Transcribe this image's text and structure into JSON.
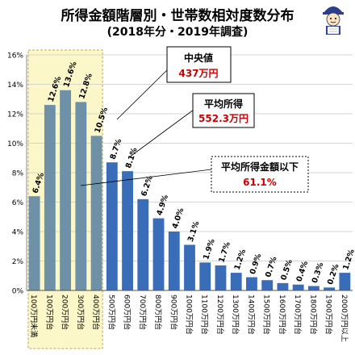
{
  "title_line1": "所得金額階層別・世帯数相対度数分布",
  "title_line2": "(2018年分・2019年調査)",
  "callouts": {
    "median": {
      "label": "中央値",
      "value": "437万円"
    },
    "mean": {
      "label": "平均所得",
      "value": "552.3万円"
    },
    "below_mean": {
      "label": "平均所得金額以下",
      "value": "61.1%"
    }
  },
  "colors": {
    "bar_below_mean": "#6f91a8",
    "bar_above_mean": "#3a6db8",
    "highlight_fill": "#fbf7c8",
    "highlight_border": "#c2a84a",
    "callout_value": "#cc0000"
  },
  "chart_data": {
    "type": "bar",
    "title": "所得金額階層別・世帯数相対度数分布",
    "subtitle": "(2018年分・2019年調査)",
    "categories": [
      "100万円未満",
      "100万円台",
      "200万円台",
      "300万円台",
      "400万円台",
      "500万円台",
      "600万円台",
      "700万円台",
      "800万円台",
      "900万円台",
      "1000万円台",
      "1100万円台",
      "1200万円台",
      "1300万円台",
      "1400万円台",
      "1500万円台",
      "1600万円台",
      "1700万円台",
      "1800万円台",
      "1900万円台",
      "2000万円以上"
    ],
    "values": [
      6.4,
      12.6,
      13.6,
      12.8,
      10.5,
      8.7,
      8.1,
      6.2,
      4.9,
      4.0,
      3.1,
      1.9,
      1.7,
      1.2,
      0.9,
      0.7,
      0.5,
      0.4,
      0.3,
      0.2,
      1.2
    ],
    "data_labels": [
      "6.4%",
      "12.6%",
      "13.6%",
      "12.8%",
      "10.5%",
      "8.7%",
      "8.1%",
      "6.2%",
      "4.9%",
      "4.0%",
      "3.1%",
      "1.9%",
      "1.7%",
      "1.2%",
      "0.9%",
      "0.7%",
      "0.5%",
      "0.4%",
      "0.3%",
      "0.2%",
      "1.2%"
    ],
    "highlight_categories": [
      "100万円未満",
      "100万円台",
      "200万円台",
      "300万円台",
      "400万円台"
    ],
    "ylim": [
      0,
      16
    ],
    "yticks": [
      0,
      2,
      4,
      6,
      8,
      10,
      12,
      14,
      16
    ],
    "ytick_labels": [
      "0%",
      "2%",
      "4%",
      "6%",
      "8%",
      "10%",
      "12%",
      "14%",
      "16%"
    ],
    "grid": true,
    "xlabel": "",
    "ylabel": ""
  }
}
